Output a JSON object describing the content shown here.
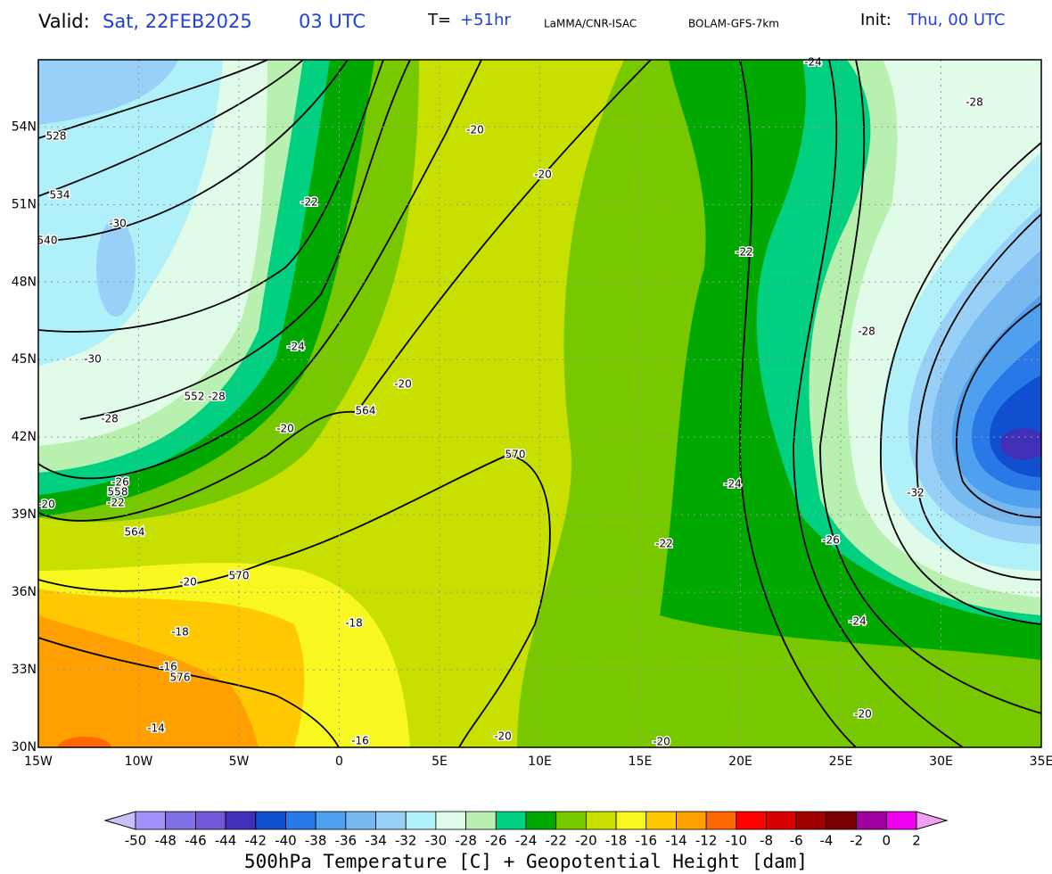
{
  "header": {
    "valid_label": "Valid:",
    "valid_date": "Sat, 22FEB2025",
    "valid_time": "03 UTC",
    "step_label": "T=",
    "step": "+51hr",
    "source": "LaMMA/CNR-ISAC",
    "model": "BOLAM-GFS-7km",
    "init_label": "Init:",
    "init": "Thu, 00 UTC"
  },
  "map": {
    "lon_range": [
      -15,
      35
    ],
    "lat_range": [
      30,
      56.6
    ],
    "lon_ticks": [
      {
        "value": -15,
        "label": "15W"
      },
      {
        "value": -10,
        "label": "10W"
      },
      {
        "value": -5,
        "label": "5W"
      },
      0,
      {
        "value": 5,
        "label": "5E"
      },
      {
        "value": 10,
        "label": "10E"
      },
      {
        "value": 15,
        "label": "15E"
      },
      {
        "value": 20,
        "label": "20E"
      },
      {
        "value": 25,
        "label": "25E"
      },
      {
        "value": 30,
        "label": "30E"
      },
      {
        "value": 35,
        "label": "35E"
      }
    ],
    "lat_ticks": [
      {
        "value": 30,
        "label": "30N"
      },
      {
        "value": 33,
        "label": "33N"
      },
      {
        "value": 36,
        "label": "36N"
      },
      {
        "value": 39,
        "label": "39N"
      },
      {
        "value": 42,
        "label": "42N"
      },
      {
        "value": 45,
        "label": "45N"
      },
      {
        "value": 48,
        "label": "48N"
      },
      {
        "value": 51,
        "label": "51N"
      },
      {
        "value": 54,
        "label": "54N"
      }
    ],
    "contour_labels": [
      "528",
      "534",
      "-30",
      "540",
      "-22",
      "-20",
      "-20",
      "-24",
      "-30",
      "552",
      "-28",
      "-28",
      "564",
      "-20",
      "-20",
      "570",
      "-26",
      "558",
      "-22",
      "-20",
      "564",
      "570",
      "-20",
      "-18",
      "-18",
      "-16",
      "576",
      "-14",
      "-16",
      "-20",
      "-20",
      "-22",
      "-24",
      "-22",
      "-24",
      "-28",
      "-28",
      "-26",
      "-32",
      "-24",
      "-20"
    ]
  },
  "colorbar": {
    "title": "500hPa Temperature [C] + Geopotential Height [dam]",
    "levels": [
      -50,
      -48,
      -46,
      -44,
      -42,
      -40,
      -38,
      -36,
      -34,
      -32,
      -30,
      -28,
      -26,
      -24,
      -22,
      -20,
      -18,
      -16,
      -14,
      -12,
      -10,
      -8,
      -6,
      -4,
      -2,
      0,
      2
    ],
    "colors": [
      "#c8c0f8",
      "#a090f8",
      "#8070e8",
      "#7058d8",
      "#4030b8",
      "#1050d0",
      "#2878e8",
      "#50a0f0",
      "#78b8f0",
      "#98d0f8",
      "#b0f0f8",
      "#e0fce8",
      "#b8f0b0",
      "#00d080",
      "#00a800",
      "#78c800",
      "#c8e000",
      "#f8f820",
      "#ffc800",
      "#ffa000",
      "#ff6800",
      "#ff0000",
      "#d80000",
      "#a00000",
      "#780000",
      "#a000a0",
      "#f000f0",
      "#f0a0f0"
    ]
  }
}
